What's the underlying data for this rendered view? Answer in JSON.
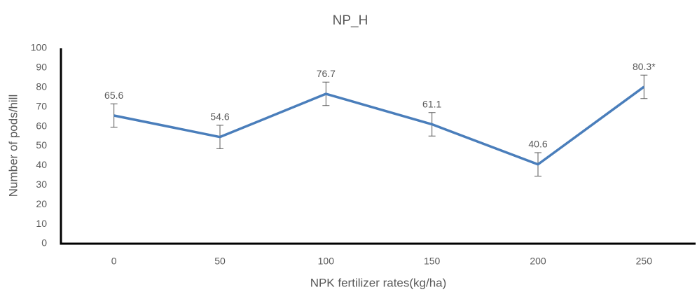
{
  "chart_data": {
    "type": "line",
    "title": "NP_H",
    "x_label": "NPK fertilizer rates(kg/ha)",
    "y_label": "Number of pods/hill",
    "categories": [
      "0",
      "50",
      "100",
      "150",
      "200",
      "250"
    ],
    "values": [
      65.6,
      54.6,
      76.7,
      61.1,
      40.6,
      80.3
    ],
    "value_labels": [
      "65.6",
      "54.6",
      "76.7",
      "61.1",
      "40.6",
      "80.3*"
    ],
    "errors": [
      6,
      6,
      6,
      6,
      6,
      6
    ],
    "color": "#4a7ebb",
    "ylim": [
      0,
      100
    ],
    "yticks": [
      0,
      10,
      20,
      30,
      40,
      50,
      60,
      70,
      80,
      90,
      100
    ],
    "grid": false
  }
}
